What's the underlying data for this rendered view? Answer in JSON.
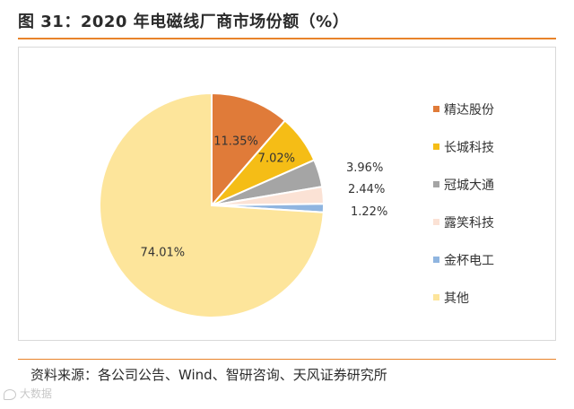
{
  "title": "图 31：2020 年电磁线厂商市场份额（%）",
  "source": "资料来源：各公司公告、Wind、智研咨询、天风证券研究所",
  "watermark": "大数据",
  "chart_data": {
    "type": "pie",
    "title": "图 31：2020 年电磁线厂商市场份额（%）",
    "slices": [
      {
        "label": "精达股份",
        "value": 11.35,
        "display": "11.35%",
        "color": "#e07b39"
      },
      {
        "label": "长城科技",
        "value": 7.02,
        "display": "7.02%",
        "color": "#f5bd16"
      },
      {
        "label": "冠城大通",
        "value": 3.96,
        "display": "3.96%",
        "color": "#a5a5a5"
      },
      {
        "label": "露笑科技",
        "value": 2.44,
        "display": "2.44%",
        "color": "#fbe2d5"
      },
      {
        "label": "金杯电工",
        "value": 1.22,
        "display": "1.22%",
        "color": "#8fb5e0"
      },
      {
        "label": "其他",
        "value": 74.01,
        "display": "74.01%",
        "color": "#fde59b"
      }
    ],
    "start_angle": "12 o'clock",
    "direction": "clockwise",
    "legend_position": "right"
  }
}
